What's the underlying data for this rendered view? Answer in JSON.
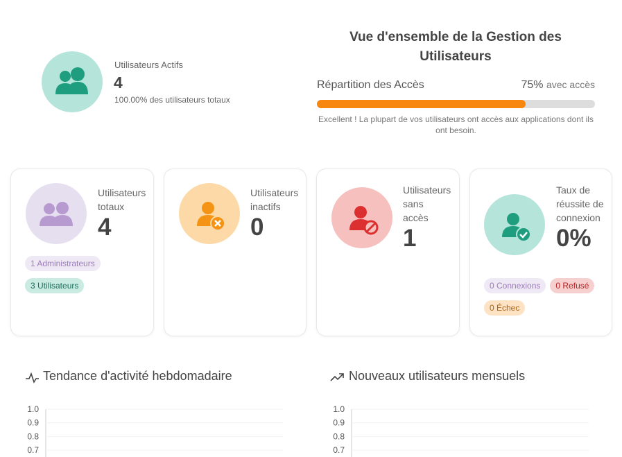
{
  "summary": {
    "label": "Utilisateurs Actifs",
    "value": "4",
    "note": "100.00% des utilisateurs totaux"
  },
  "overview": {
    "title": "Vue d'ensemble de la Gestion des Utilisateurs",
    "access_label": "Répartition des Accès",
    "access_percent": 75,
    "access_percent_label": "75%",
    "access_suffix": "avec accès",
    "message": "Excellent ! La plupart de vos utilisateurs ont accès aux applications dont ils ont besoin."
  },
  "cards": [
    {
      "label": "Utilisateurs totaux",
      "value": "4",
      "badges": [
        "1 Administrateurs",
        "3 Utilisateurs"
      ]
    },
    {
      "label": "Utilisateurs inactifs",
      "value": "0",
      "badges": []
    },
    {
      "label": "Utilisateurs sans accès",
      "value": "1",
      "badges": []
    },
    {
      "label": "Taux de réussite de connexion",
      "value": "0%",
      "badges": [
        "0 Connexions",
        "0 Refusé",
        "0 Échec"
      ]
    }
  ],
  "charts": [
    {
      "title": "Tendance d'activité hebdomadaire",
      "ylim": [
        0,
        1
      ],
      "yticks": [
        {
          "value": 1,
          "label": "1.0"
        },
        0.9,
        0.8,
        0.7
      ]
    },
    {
      "title": "Nouveaux utilisateurs mensuels",
      "ylim": [
        0,
        1
      ],
      "yticks": [
        {
          "value": 1,
          "label": "1.0"
        },
        0.9,
        0.8,
        0.7
      ]
    }
  ]
}
